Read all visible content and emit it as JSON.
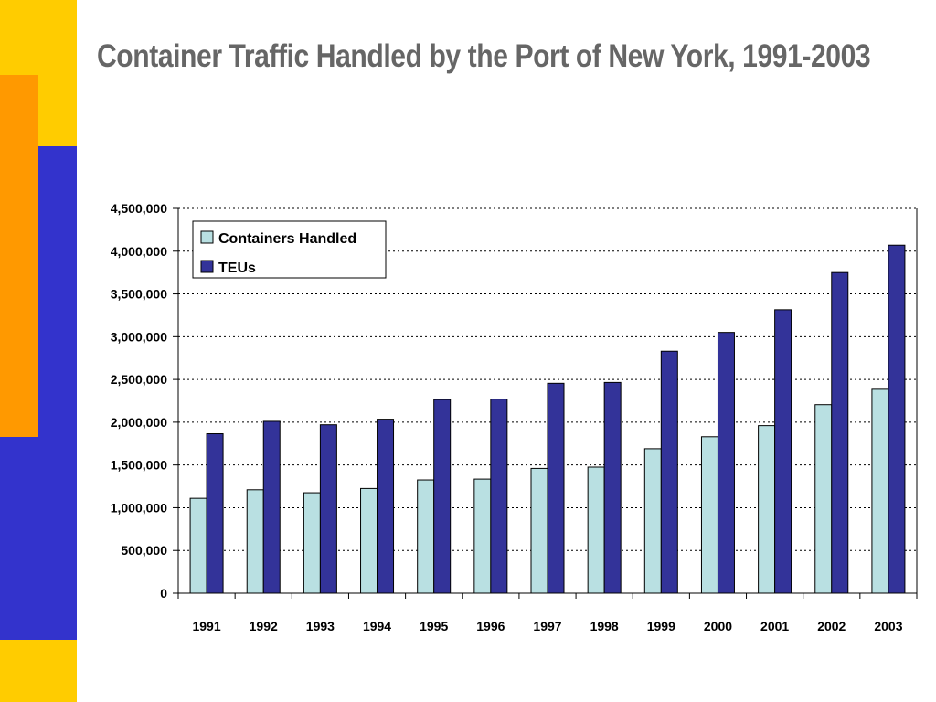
{
  "slide": {
    "title": "Container Traffic Handled by the Port of New York, 1991-2003"
  },
  "colors": {
    "containers": "#b9e0e2",
    "teus": "#333399",
    "deco_yellow": "#ffcc00",
    "deco_orange": "#ff9900",
    "deco_blue": "#3333cc"
  },
  "chart_data": {
    "type": "bar",
    "title": "Container Traffic Handled by the Port of New York, 1991-2003",
    "xlabel": "",
    "ylabel": "",
    "categories": [
      "1991",
      "1992",
      "1993",
      "1994",
      "1995",
      "1996",
      "1997",
      "1998",
      "1999",
      "2000",
      "2001",
      "2002",
      "2003"
    ],
    "series": [
      {
        "name": "Containers Handled",
        "values": [
          1110000,
          1210000,
          1175000,
          1225000,
          1325000,
          1335000,
          1460000,
          1475000,
          1690000,
          1830000,
          1960000,
          2205000,
          2385000
        ]
      },
      {
        "name": "TEUs",
        "values": [
          1865000,
          2010000,
          1970000,
          2035000,
          2265000,
          2270000,
          2455000,
          2465000,
          2830000,
          3050000,
          3315000,
          3750000,
          4070000
        ]
      }
    ],
    "ylim": [
      0,
      4500000
    ],
    "yticks": [
      "0",
      "500,000",
      "1,000,000",
      "1,500,000",
      "2,000,000",
      "2,500,000",
      "3,000,000",
      "3,500,000",
      "4,000,000",
      "4,500,000"
    ],
    "grid": true,
    "legend_position": "top-left"
  }
}
